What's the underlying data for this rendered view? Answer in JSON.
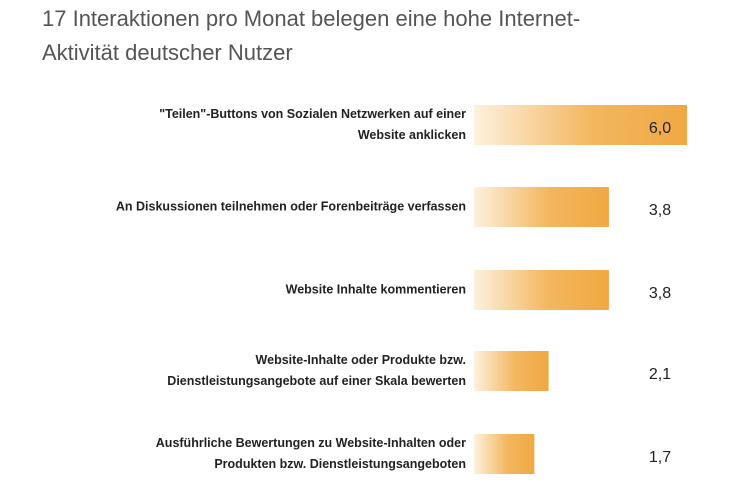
{
  "chart_data": {
    "type": "hbar",
    "title": [
      "17 Interaktionen pro Monat belegen eine hohe Internet-",
      "Aktivität deutscher Nutzer"
    ],
    "categories": [
      [
        "\"Teilen\"-Buttons von Sozialen Netzwerken auf einer",
        "Website anklicken"
      ],
      [
        "An Diskussionen teilnehmen oder Forenbeiträge verfassen"
      ],
      [
        "Website Inhalte kommentieren"
      ],
      [
        "Website-Inhalte oder Produkte bzw.",
        "Dienstleistungsangebote auf einer Skala bewerten"
      ],
      [
        "Ausführliche Bewertungen zu Website-Inhalten oder",
        "Produkten bzw. Dienstleistungsangeboten"
      ]
    ],
    "values": [
      6.0,
      3.8,
      3.8,
      2.1,
      1.7
    ],
    "value_labels": [
      "6,0",
      "3,8",
      "3,8",
      "2,1",
      "1,7"
    ],
    "color": "#f0a843"
  }
}
